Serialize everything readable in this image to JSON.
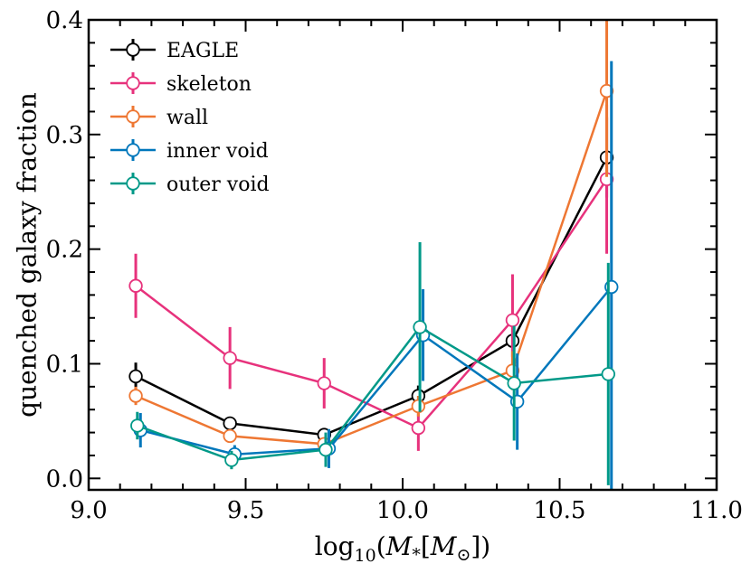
{
  "chart_data": {
    "type": "line",
    "title": "",
    "xlabel": "log10(M*[M⊙])",
    "ylabel": "quenched galaxy fraction",
    "xlim": [
      9.0,
      11.0
    ],
    "ylim": [
      -0.01,
      0.4
    ],
    "x_ticks": [
      9.0,
      9.5,
      10.0,
      10.5,
      11.0
    ],
    "x_tick_labels": [
      "9.0",
      "9.5",
      "10.0",
      "10.5",
      "11.0"
    ],
    "y_ticks": [
      0.0,
      0.1,
      0.2,
      0.3,
      0.4
    ],
    "y_tick_labels": [
      "0.0",
      "0.1",
      "0.2",
      "0.3",
      "0.4"
    ],
    "grid": false,
    "legend_position": "top-left",
    "series": [
      {
        "name": "EAGLE",
        "color": "#000000",
        "points": [
          {
            "x": 9.15,
            "y": 0.089,
            "err": 0.012
          },
          {
            "x": 9.45,
            "y": 0.048,
            "err": 0.005
          },
          {
            "x": 9.75,
            "y": 0.038,
            "err": 0.005
          },
          {
            "x": 10.05,
            "y": 0.072,
            "err": 0.009
          },
          {
            "x": 10.35,
            "y": 0.12,
            "err": 0.014
          },
          {
            "x": 10.65,
            "y": 0.28,
            "err": 0.035
          }
        ]
      },
      {
        "name": "skeleton",
        "color": "#e7327c",
        "points": [
          {
            "x": 9.15,
            "y": 0.168,
            "err": 0.028
          },
          {
            "x": 9.45,
            "y": 0.105,
            "err": 0.027
          },
          {
            "x": 9.75,
            "y": 0.083,
            "err": 0.022
          },
          {
            "x": 10.05,
            "y": 0.044,
            "err": 0.02
          },
          {
            "x": 10.35,
            "y": 0.138,
            "err": 0.04
          },
          {
            "x": 10.65,
            "y": 0.261,
            "err": 0.065
          }
        ]
      },
      {
        "name": "wall",
        "color": "#ee7733",
        "points": [
          {
            "x": 9.15,
            "y": 0.072,
            "err": 0.008
          },
          {
            "x": 9.45,
            "y": 0.037,
            "err": 0.004
          },
          {
            "x": 9.75,
            "y": 0.03,
            "err": 0.004
          },
          {
            "x": 10.05,
            "y": 0.063,
            "err": 0.009
          },
          {
            "x": 10.35,
            "y": 0.094,
            "err": 0.017
          },
          {
            "x": 10.65,
            "y": 0.338,
            "err": 0.075
          }
        ]
      },
      {
        "name": "inner void",
        "color": "#0077bb",
        "points": [
          {
            "x": 9.165,
            "y": 0.042,
            "err": 0.015
          },
          {
            "x": 9.465,
            "y": 0.021,
            "err": 0.008
          },
          {
            "x": 9.765,
            "y": 0.026,
            "err": 0.017
          },
          {
            "x": 10.065,
            "y": 0.125,
            "err": 0.04
          },
          {
            "x": 10.365,
            "y": 0.067,
            "err": 0.042
          },
          {
            "x": 10.665,
            "y": 0.167,
            "err": 0.197
          }
        ]
      },
      {
        "name": "outer void",
        "color": "#009988",
        "points": [
          {
            "x": 9.155,
            "y": 0.046,
            "err": 0.012
          },
          {
            "x": 9.455,
            "y": 0.016,
            "err": 0.008
          },
          {
            "x": 9.755,
            "y": 0.025,
            "err": 0.015
          },
          {
            "x": 10.055,
            "y": 0.132,
            "err": 0.074
          },
          {
            "x": 10.355,
            "y": 0.083,
            "err": 0.05
          },
          {
            "x": 10.655,
            "y": 0.091,
            "err": 0.097
          }
        ]
      }
    ]
  }
}
